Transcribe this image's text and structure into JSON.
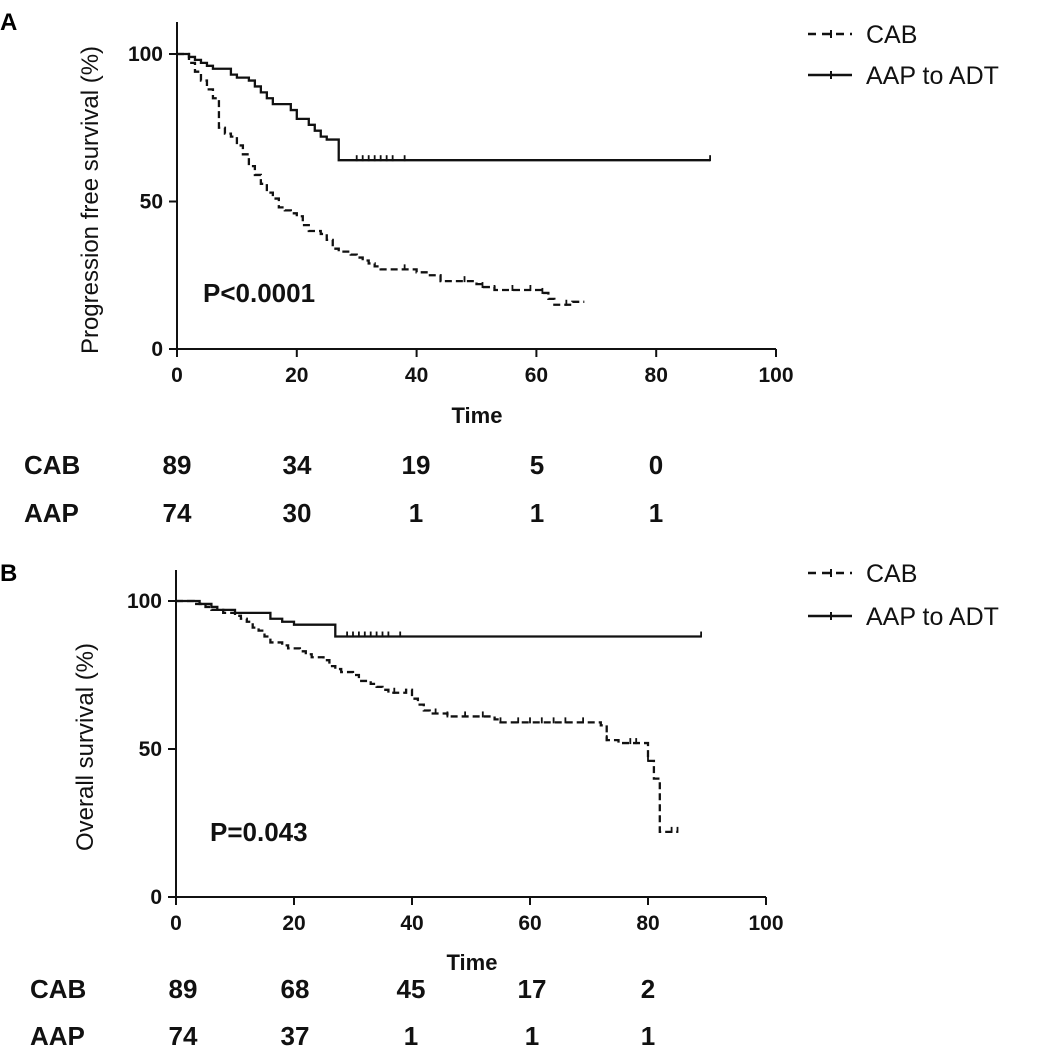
{
  "panels": [
    {
      "letter": "A",
      "p_value": "P<0.0001",
      "risk_table": [
        {
          "label": "CAB",
          "counts": [
            "89",
            "34",
            "19",
            "5",
            "0"
          ]
        },
        {
          "label": "AAP",
          "counts": [
            "74",
            "30",
            "1",
            "1",
            "1"
          ]
        }
      ]
    },
    {
      "letter": "B",
      "p_value": "P=0.043",
      "risk_table": [
        {
          "label": "CAB",
          "counts": [
            "89",
            "68",
            "45",
            "17",
            "2"
          ]
        },
        {
          "label": "AAP",
          "counts": [
            "74",
            "37",
            "1",
            "1",
            "1"
          ]
        }
      ]
    }
  ],
  "chart_data": [
    {
      "type": "line",
      "subtype": "kaplan-meier",
      "xlabel": "Time",
      "ylabel": "Progression free survival (%)",
      "xlim": [
        0,
        100
      ],
      "ylim": [
        0,
        100
      ],
      "xticks": [
        "0",
        "20",
        "40",
        "60",
        "80",
        "100"
      ],
      "yticks": [
        "0",
        "50",
        "100"
      ],
      "legend_position": "top-right",
      "series": [
        {
          "name": "CAB",
          "style": "dashed",
          "points": [
            [
              0,
              100
            ],
            [
              2,
              97
            ],
            [
              3,
              94
            ],
            [
              4,
              91
            ],
            [
              5,
              88
            ],
            [
              6,
              85
            ],
            [
              7,
              75
            ],
            [
              8,
              73
            ],
            [
              9,
              72
            ],
            [
              10,
              69
            ],
            [
              11,
              66
            ],
            [
              12,
              62
            ],
            [
              13,
              59
            ],
            [
              14,
              56
            ],
            [
              15,
              53
            ],
            [
              16,
              51
            ],
            [
              17,
              48
            ],
            [
              18,
              47
            ],
            [
              19,
              46
            ],
            [
              20,
              45
            ],
            [
              21,
              42
            ],
            [
              22,
              40
            ],
            [
              24,
              39
            ],
            [
              25,
              37
            ],
            [
              26,
              34
            ],
            [
              27,
              33
            ],
            [
              29,
              32
            ],
            [
              30,
              31
            ],
            [
              31,
              30
            ],
            [
              32,
              29
            ],
            [
              33,
              28
            ],
            [
              34,
              27
            ],
            [
              38,
              27
            ],
            [
              40,
              26
            ],
            [
              42,
              25
            ],
            [
              44,
              23
            ],
            [
              48,
              23
            ],
            [
              50,
              22
            ],
            [
              51,
              21
            ],
            [
              52,
              21
            ],
            [
              53,
              20
            ],
            [
              55,
              20
            ],
            [
              58,
              20
            ],
            [
              59,
              20
            ],
            [
              60,
              20
            ],
            [
              61,
              19
            ],
            [
              62,
              17
            ],
            [
              63,
              15
            ],
            [
              65,
              15
            ],
            [
              66,
              16
            ],
            [
              68,
              16
            ]
          ],
          "censor_x": [
            38,
            44,
            48,
            51,
            53,
            56,
            59,
            61,
            65
          ]
        },
        {
          "name": "AAP to ADT",
          "style": "solid",
          "points": [
            [
              0,
              100
            ],
            [
              2,
              99
            ],
            [
              3,
              98
            ],
            [
              4,
              97
            ],
            [
              5,
              96
            ],
            [
              6,
              95
            ],
            [
              8,
              95
            ],
            [
              9,
              93
            ],
            [
              10,
              92
            ],
            [
              12,
              91
            ],
            [
              13,
              89
            ],
            [
              14,
              87
            ],
            [
              15,
              85
            ],
            [
              16,
              83
            ],
            [
              19,
              81
            ],
            [
              20,
              78
            ],
            [
              22,
              76
            ],
            [
              23,
              74
            ],
            [
              24,
              72
            ],
            [
              25,
              71
            ],
            [
              26,
              71
            ],
            [
              27,
              64
            ],
            [
              89,
              64
            ]
          ],
          "censor_x": [
            30,
            31,
            32,
            33,
            34,
            35,
            36,
            38,
            89
          ]
        }
      ]
    },
    {
      "type": "line",
      "subtype": "kaplan-meier",
      "xlabel": "Time",
      "ylabel": "Overall survival (%)",
      "xlim": [
        0,
        100
      ],
      "ylim": [
        0,
        100
      ],
      "xticks": [
        "0",
        "20",
        "40",
        "60",
        "80",
        "100"
      ],
      "yticks": [
        "0",
        "50",
        "100"
      ],
      "legend_position": "top-right",
      "series": [
        {
          "name": "CAB",
          "style": "dashed",
          "points": [
            [
              0,
              100
            ],
            [
              3,
              99
            ],
            [
              5,
              98
            ],
            [
              6,
              97
            ],
            [
              8,
              96
            ],
            [
              10,
              95
            ],
            [
              11,
              94
            ],
            [
              12,
              93
            ],
            [
              13,
              91
            ],
            [
              14,
              90
            ],
            [
              15,
              88
            ],
            [
              16,
              86
            ],
            [
              18,
              85
            ],
            [
              19,
              84
            ],
            [
              21,
              83
            ],
            [
              22,
              82
            ],
            [
              23,
              81
            ],
            [
              25,
              80
            ],
            [
              26,
              78
            ],
            [
              27,
              77
            ],
            [
              28,
              76
            ],
            [
              30,
              75
            ],
            [
              31,
              73
            ],
            [
              33,
              72
            ],
            [
              34,
              71
            ],
            [
              35,
              70
            ],
            [
              36,
              69
            ],
            [
              38,
              69
            ],
            [
              39,
              70
            ],
            [
              40,
              67
            ],
            [
              41,
              65
            ],
            [
              42,
              63
            ],
            [
              43,
              62
            ],
            [
              44,
              62
            ],
            [
              46,
              61
            ],
            [
              50,
              61
            ],
            [
              53,
              61
            ],
            [
              54,
              60
            ],
            [
              55,
              59
            ],
            [
              58,
              59
            ],
            [
              60,
              59
            ],
            [
              62,
              59
            ],
            [
              64,
              59
            ],
            [
              66,
              59
            ],
            [
              69,
              59
            ],
            [
              71,
              59
            ],
            [
              72,
              58
            ],
            [
              73,
              53
            ],
            [
              75,
              52
            ],
            [
              77,
              52
            ],
            [
              78,
              52
            ],
            [
              79,
              52
            ],
            [
              80,
              46
            ],
            [
              81,
              40
            ],
            [
              82,
              22
            ],
            [
              84,
              22
            ],
            [
              85,
              22
            ]
          ],
          "censor_x": [
            37,
            44,
            46,
            49,
            52,
            55,
            58,
            60,
            62,
            64,
            66,
            69,
            73,
            77,
            78,
            80,
            84,
            85
          ]
        },
        {
          "name": "AAP to ADT",
          "style": "solid",
          "points": [
            [
              0,
              100
            ],
            [
              4,
              99
            ],
            [
              6,
              98
            ],
            [
              7,
              97
            ],
            [
              10,
              96
            ],
            [
              12,
              96
            ],
            [
              15,
              96
            ],
            [
              16,
              94
            ],
            [
              18,
              93
            ],
            [
              20,
              92
            ],
            [
              22,
              92
            ],
            [
              24,
              92
            ],
            [
              26,
              92
            ],
            [
              27,
              88
            ],
            [
              89,
              88
            ]
          ],
          "censor_x": [
            29,
            30,
            31,
            32,
            33,
            34,
            35,
            36,
            38,
            89
          ]
        }
      ]
    }
  ]
}
